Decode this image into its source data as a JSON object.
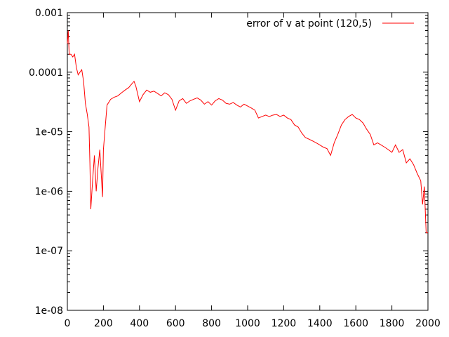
{
  "chart_data": {
    "type": "line",
    "title": "",
    "xlabel": "",
    "ylabel": "",
    "xlim": [
      0,
      2000
    ],
    "ylim": [
      1e-08,
      0.001
    ],
    "y_scale": "log",
    "grid": false,
    "legend_position": "top-right",
    "x_ticks": [
      0,
      200,
      400,
      600,
      800,
      1000,
      1200,
      1400,
      1600,
      1800,
      2000
    ],
    "x_tick_labels": [
      "0",
      "200",
      "400",
      "600",
      "800",
      "1000",
      "1200",
      "1400",
      "1600",
      "1800",
      "2000"
    ],
    "y_ticks": [
      1e-08,
      1e-07,
      1e-06,
      1e-05,
      0.0001,
      0.001
    ],
    "y_tick_labels": [
      "1e-08",
      "1e-07",
      "1e-06",
      "1e-05",
      "0.0001",
      "0.001"
    ],
    "series": [
      {
        "name": "error of v at point (120,5)",
        "color": "#ff0000",
        "x": [
          0,
          5,
          10,
          20,
          30,
          40,
          50,
          60,
          70,
          80,
          90,
          100,
          110,
          120,
          125,
          130,
          140,
          150,
          160,
          170,
          180,
          190,
          195,
          200,
          210,
          220,
          240,
          260,
          280,
          300,
          320,
          340,
          360,
          370,
          380,
          400,
          420,
          440,
          460,
          480,
          500,
          520,
          540,
          560,
          580,
          600,
          620,
          640,
          660,
          680,
          700,
          720,
          740,
          760,
          780,
          800,
          820,
          840,
          860,
          880,
          900,
          920,
          940,
          960,
          980,
          1000,
          1020,
          1040,
          1060,
          1080,
          1100,
          1120,
          1140,
          1160,
          1180,
          1200,
          1220,
          1240,
          1260,
          1280,
          1300,
          1320,
          1340,
          1360,
          1380,
          1400,
          1420,
          1440,
          1460,
          1480,
          1500,
          1520,
          1540,
          1560,
          1580,
          1600,
          1620,
          1640,
          1660,
          1680,
          1700,
          1720,
          1740,
          1760,
          1780,
          1800,
          1820,
          1840,
          1860,
          1880,
          1900,
          1920,
          1940,
          1960,
          1970,
          1980,
          1990,
          2000
        ],
        "y": [
          0.0003,
          0.0005,
          0.0002,
          0.0002,
          0.00018,
          0.0002,
          0.00012,
          9e-05,
          0.0001,
          0.00011,
          7e-05,
          3e-05,
          2e-05,
          1.2e-05,
          3e-06,
          5e-07,
          1.5e-06,
          4e-06,
          1e-06,
          2.5e-06,
          5e-06,
          1.5e-06,
          8e-07,
          5e-06,
          1.2e-05,
          2.8e-05,
          3.5e-05,
          3.8e-05,
          4e-05,
          4.5e-05,
          5e-05,
          5.5e-05,
          6.5e-05,
          7e-05,
          5.8e-05,
          3.2e-05,
          4.2e-05,
          5e-05,
          4.6e-05,
          4.8e-05,
          4.4e-05,
          4e-05,
          4.5e-05,
          4.2e-05,
          3.5e-05,
          2.3e-05,
          3.3e-05,
          3.6e-05,
          3e-05,
          3.3e-05,
          3.5e-05,
          3.7e-05,
          3.4e-05,
          2.9e-05,
          3.2e-05,
          2.8e-05,
          3.3e-05,
          3.6e-05,
          3.4e-05,
          3e-05,
          2.9e-05,
          3.1e-05,
          2.8e-05,
          2.6e-05,
          2.9e-05,
          2.7e-05,
          2.5e-05,
          2.3e-05,
          1.7e-05,
          1.8e-05,
          1.9e-05,
          1.8e-05,
          1.9e-05,
          1.95e-05,
          1.8e-05,
          1.9e-05,
          1.7e-05,
          1.6e-05,
          1.3e-05,
          1.2e-05,
          9.5e-06,
          8e-06,
          7.5e-06,
          7e-06,
          6.5e-06,
          6e-06,
          5.5e-06,
          5.2e-06,
          4e-06,
          6.5e-06,
          9e-06,
          1.3e-05,
          1.6e-05,
          1.8e-05,
          1.95e-05,
          1.7e-05,
          1.6e-05,
          1.4e-05,
          1.1e-05,
          9e-06,
          6e-06,
          6.5e-06,
          6e-06,
          5.5e-06,
          5e-06,
          4.5e-06,
          6e-06,
          4.5e-06,
          5e-06,
          3e-06,
          3.5e-06,
          2.8e-06,
          2e-06,
          1.5e-06,
          6e-07,
          1.2e-06,
          2e-07,
          2e-07
        ]
      }
    ]
  }
}
